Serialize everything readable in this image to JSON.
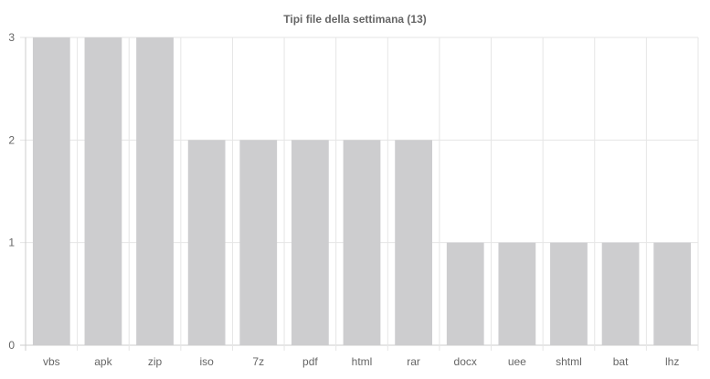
{
  "chart_data": {
    "type": "bar",
    "title": "Tipi file della settimana (13)",
    "categories": [
      "vbs",
      "apk",
      "zip",
      "iso",
      "7z",
      "pdf",
      "html",
      "rar",
      "docx",
      "uee",
      "shtml",
      "bat",
      "lhz"
    ],
    "values": [
      3,
      3,
      3,
      2,
      2,
      2,
      2,
      2,
      1,
      1,
      1,
      1,
      1
    ],
    "ylim": [
      0,
      3
    ],
    "yticks": [
      0,
      1,
      2,
      3
    ],
    "grid": true,
    "colors": {
      "bar": "#cdcdcf",
      "grid": "#e6e6e6",
      "axis": "#cccccc",
      "text": "#666666"
    }
  }
}
